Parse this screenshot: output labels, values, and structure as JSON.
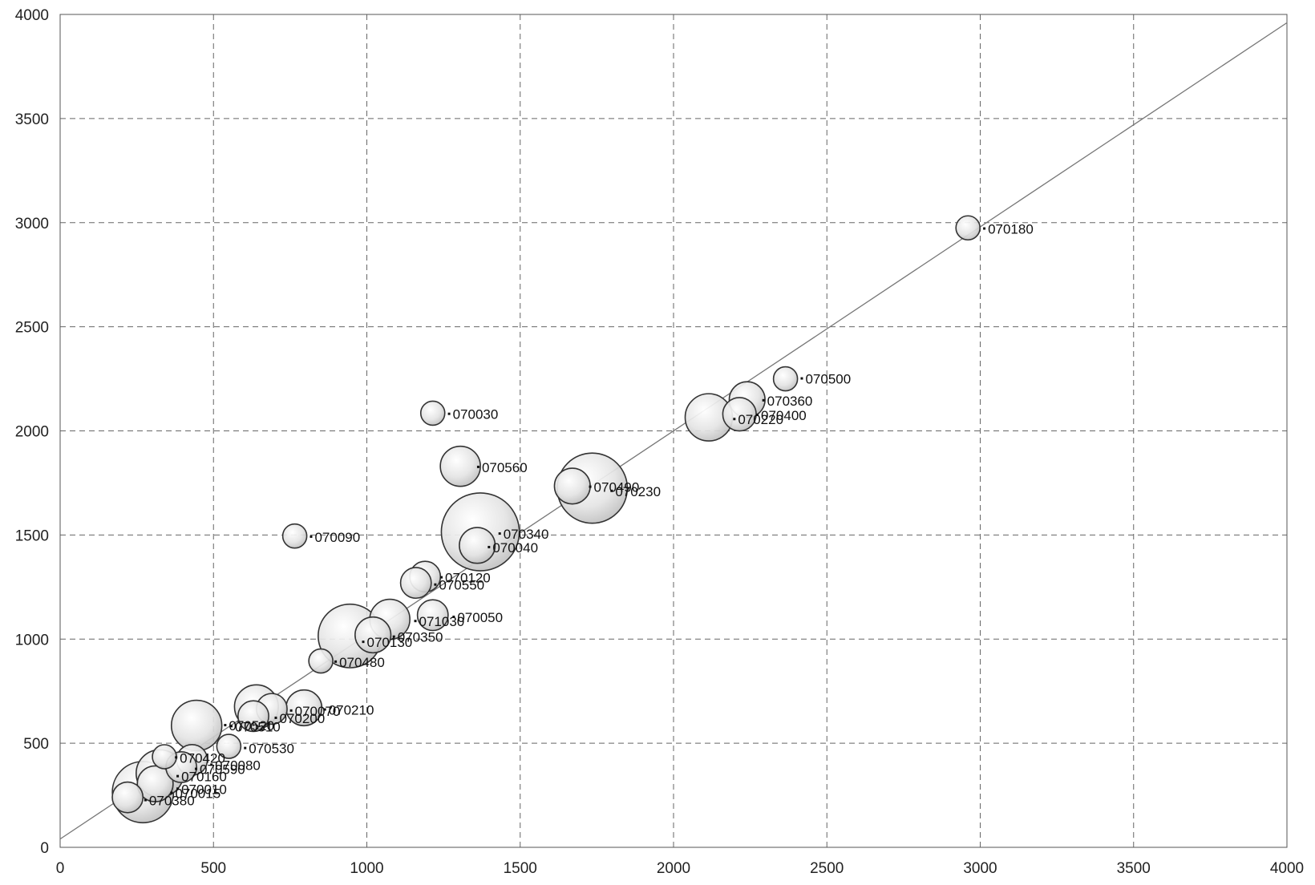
{
  "chart_data": {
    "type": "scatter",
    "variant": "bubble",
    "title": "",
    "xlabel": "",
    "ylabel": "",
    "xlim": [
      0,
      4000
    ],
    "ylim": [
      0,
      4000
    ],
    "x_ticks": [
      0,
      500,
      1000,
      1500,
      2000,
      2500,
      3000,
      3500,
      4000
    ],
    "y_ticks": [
      0,
      500,
      1000,
      1500,
      2000,
      2500,
      3000,
      3500,
      4000
    ],
    "x_tick_labels": [
      "0",
      "500",
      "1000",
      "1500",
      "2000",
      "2500",
      "3000",
      "3500",
      "4000"
    ],
    "y_tick_labels": [
      "0",
      "500",
      "1000",
      "1500",
      "2000",
      "2500",
      "3000",
      "3500",
      "4000"
    ],
    "grid": true,
    "grid_style": "dashed",
    "reference_line": {
      "from": [
        0,
        40
      ],
      "to": [
        4000,
        3960
      ],
      "color": "#777777"
    },
    "bubble_fill": "#d9d9d9",
    "bubble_stroke": "#333333",
    "points": [
      {
        "label": "070180",
        "x": 2960,
        "y": 2975,
        "size": 1
      },
      {
        "label": "070500",
        "x": 2365,
        "y": 2250,
        "size": 1
      },
      {
        "label": "070360",
        "x": 2240,
        "y": 2150,
        "size": 3
      },
      {
        "label": "070400",
        "x": 2215,
        "y": 2080,
        "size": 2.5
      },
      {
        "label": "070220",
        "x": 2115,
        "y": 2065,
        "size": 6
      },
      {
        "label": "070030",
        "x": 1215,
        "y": 2085,
        "size": 1
      },
      {
        "label": "070560",
        "x": 1305,
        "y": 1830,
        "size": 4
      },
      {
        "label": "070490",
        "x": 1670,
        "y": 1735,
        "size": 3
      },
      {
        "label": "070230",
        "x": 1735,
        "y": 1725,
        "size": 15
      },
      {
        "label": "070090",
        "x": 765,
        "y": 1495,
        "size": 1
      },
      {
        "label": "070340",
        "x": 1370,
        "y": 1515,
        "size": 19
      },
      {
        "label": "070040",
        "x": 1360,
        "y": 1450,
        "size": 3
      },
      {
        "label": "070120",
        "x": 1190,
        "y": 1300,
        "size": 2
      },
      {
        "label": "070550",
        "x": 1160,
        "y": 1270,
        "size": 2
      },
      {
        "label": "070050",
        "x": 1215,
        "y": 1115,
        "size": 2
      },
      {
        "label": "071030",
        "x": 1075,
        "y": 1095,
        "size": 4
      },
      {
        "label": "070350",
        "x": 1020,
        "y": 1020,
        "size": 3
      },
      {
        "label": "070130",
        "x": 945,
        "y": 1015,
        "size": 12
      },
      {
        "label": "070480",
        "x": 850,
        "y": 895,
        "size": 1
      },
      {
        "label": "070210",
        "x": 795,
        "y": 670,
        "size": 3
      },
      {
        "label": "070070",
        "x": 690,
        "y": 665,
        "size": 2
      },
      {
        "label": "070200",
        "x": 640,
        "y": 675,
        "size": 5
      },
      {
        "label": "070520",
        "x": 630,
        "y": 630,
        "size": 2
      },
      {
        "label": "070510",
        "x": 445,
        "y": 585,
        "size": 7
      },
      {
        "label": "070530",
        "x": 550,
        "y": 485,
        "size": 1
      },
      {
        "label": "070420",
        "x": 340,
        "y": 435,
        "size": 1
      },
      {
        "label": "070080",
        "x": 430,
        "y": 420,
        "size": 2
      },
      {
        "label": "070590",
        "x": 395,
        "y": 385,
        "size": 2
      },
      {
        "label": "070160",
        "x": 325,
        "y": 355,
        "size": 6
      },
      {
        "label": "070010",
        "x": 310,
        "y": 305,
        "size": 3
      },
      {
        "label": "070015",
        "x": 270,
        "y": 265,
        "size": 11
      },
      {
        "label": "070380",
        "x": 220,
        "y": 240,
        "size": 2
      }
    ],
    "point_labels": [
      {
        "text": "070180",
        "x": 3025,
        "y": 2970
      },
      {
        "text": "070500",
        "x": 2430,
        "y": 2250
      },
      {
        "text": "070360",
        "x": 2305,
        "y": 2145
      },
      {
        "text": "070400",
        "x": 2285,
        "y": 2075
      },
      {
        "text": "070220",
        "x": 2210,
        "y": 2055
      },
      {
        "text": "070030",
        "x": 1280,
        "y": 2080
      },
      {
        "text": "070560",
        "x": 1375,
        "y": 1825
      },
      {
        "text": "070490",
        "x": 1740,
        "y": 1730
      },
      {
        "text": "070230",
        "x": 1810,
        "y": 1710
      },
      {
        "text": "070090",
        "x": 830,
        "y": 1490
      },
      {
        "text": "070340",
        "x": 1445,
        "y": 1505
      },
      {
        "text": "070040",
        "x": 1410,
        "y": 1440
      },
      {
        "text": "070120",
        "x": 1255,
        "y": 1295
      },
      {
        "text": "070550",
        "x": 1235,
        "y": 1260
      },
      {
        "text": "070050",
        "x": 1295,
        "y": 1105
      },
      {
        "text": "071030",
        "x": 1170,
        "y": 1085
      },
      {
        "text": "070350",
        "x": 1100,
        "y": 1010
      },
      {
        "text": "070130",
        "x": 1000,
        "y": 985
      },
      {
        "text": "070480",
        "x": 910,
        "y": 890
      },
      {
        "text": "070210",
        "x": 875,
        "y": 660
      },
      {
        "text": "070070",
        "x": 765,
        "y": 655
      },
      {
        "text": "070200",
        "x": 715,
        "y": 620
      },
      {
        "text": "070520",
        "x": 550,
        "y": 585
      },
      {
        "text": "070510",
        "x": 570,
        "y": 580
      },
      {
        "text": "070530",
        "x": 615,
        "y": 475
      },
      {
        "text": "070420",
        "x": 390,
        "y": 430
      },
      {
        "text": "070080",
        "x": 505,
        "y": 395
      },
      {
        "text": "070590",
        "x": 455,
        "y": 375
      },
      {
        "text": "070160",
        "x": 395,
        "y": 340
      },
      {
        "text": "070010",
        "x": 395,
        "y": 280
      },
      {
        "text": "070015",
        "x": 375,
        "y": 260
      },
      {
        "text": "070380",
        "x": 290,
        "y": 225
      }
    ]
  }
}
